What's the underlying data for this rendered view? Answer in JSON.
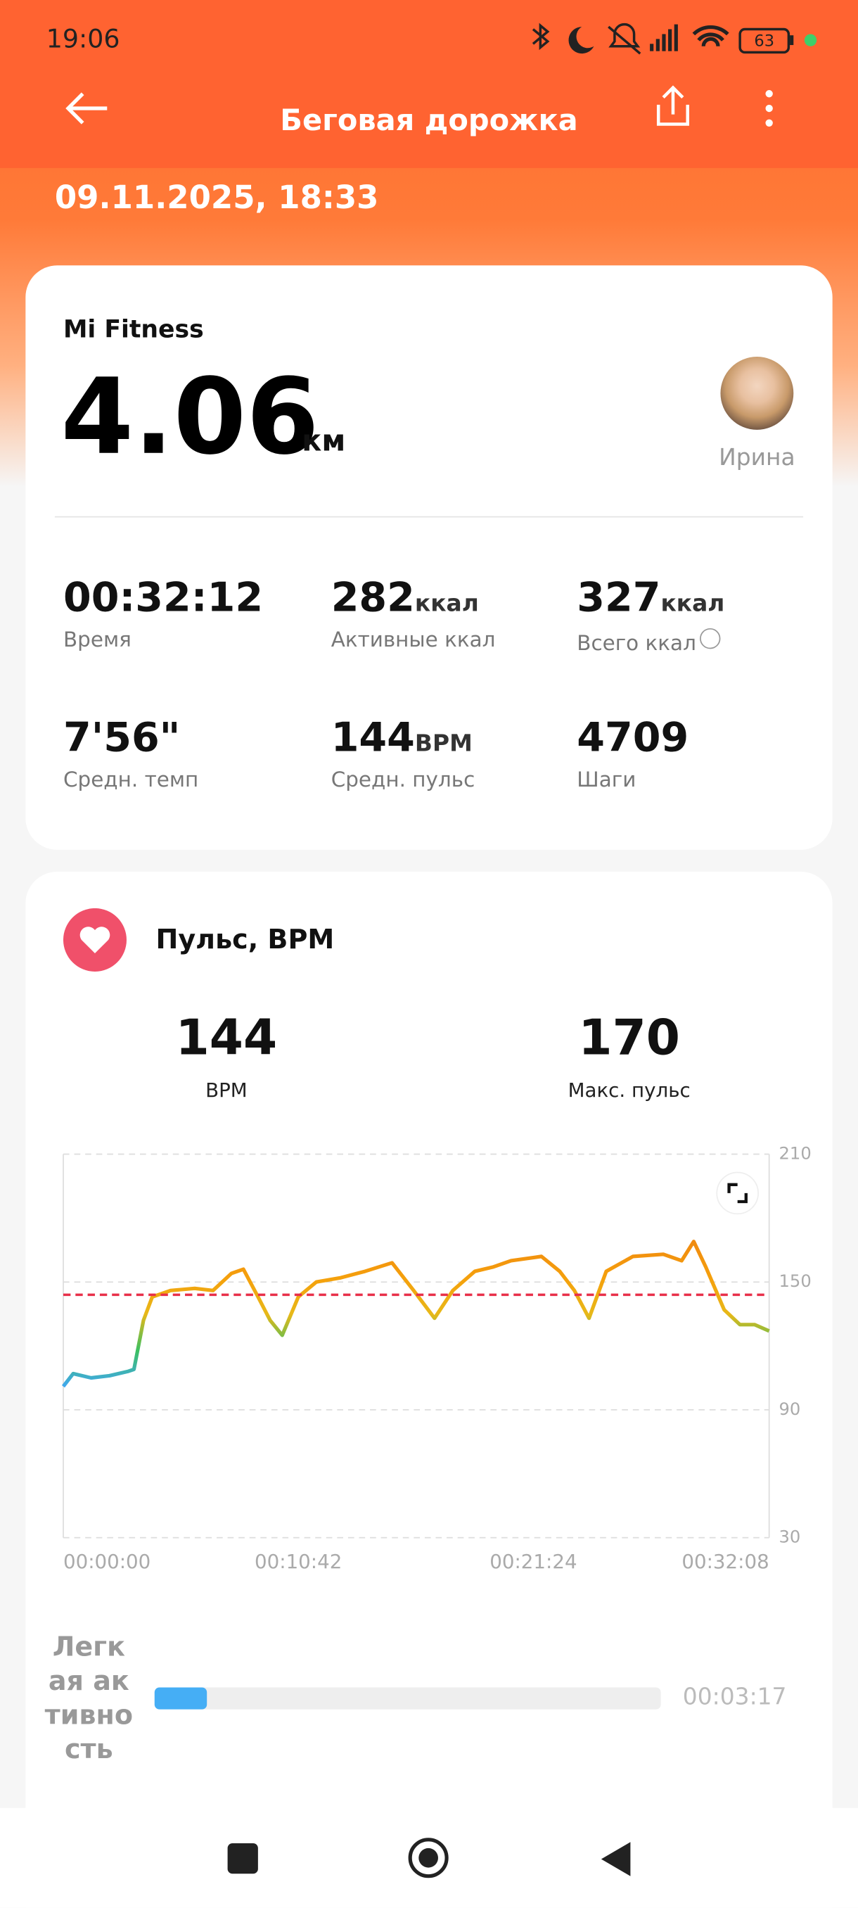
{
  "status_bar": {
    "time": "19:06",
    "battery": "63"
  },
  "header": {
    "title": "Беговая дорожка",
    "date": "09.11.2025, 18:33"
  },
  "summary": {
    "source": "Mi Fitness",
    "distance": "4.06",
    "distance_unit": "км",
    "user": "Ирина",
    "stats": [
      {
        "value": "00:32:12",
        "label": "Время"
      },
      {
        "value": "282",
        "unit": "ккал",
        "label": "Активные ккал"
      },
      {
        "value": "327",
        "unit": "ккал",
        "label": "Всего ккал"
      },
      {
        "value": "7'56\"",
        "label": "Средн. темп"
      },
      {
        "value": "144",
        "unit": "BPM",
        "label": "Средн. пульс"
      },
      {
        "value": "4709",
        "label": "Шаги"
      }
    ]
  },
  "heart": {
    "title": "Пульс, BPM",
    "avg": {
      "value": 144,
      "label": "BPM"
    },
    "max": {
      "value": 170,
      "label": "Макс. пульс"
    }
  },
  "chart_data": {
    "type": "line",
    "x": [
      0,
      27,
      76,
      126,
      176,
      193,
      219,
      243,
      293,
      359,
      409,
      459,
      492,
      532,
      565,
      598,
      642,
      691,
      758,
      824,
      898,
      957,
      1014,
      1064,
      1124,
      1173,
      1223,
      1306,
      1356,
      1396,
      1436,
      1483,
      1556,
      1639,
      1689,
      1722,
      1755,
      1805,
      1848,
      1888,
      1928
    ],
    "values": [
      101,
      107,
      105,
      106,
      108,
      109,
      132,
      143,
      146,
      147,
      146,
      154,
      156,
      143,
      132,
      125,
      143,
      150,
      152,
      155,
      159,
      146,
      133,
      146,
      155,
      157,
      160,
      162,
      155,
      146,
      133,
      155,
      162,
      163,
      160,
      169,
      157,
      137,
      130,
      130,
      127
    ],
    "colors": [
      "#f08a10",
      "#f5a00c",
      "#e8b818",
      "#3cc060",
      "#40a8f0"
    ],
    "avg_color": "#e8304a",
    "xlim": [
      0,
      1928
    ],
    "xticks": [
      {
        "value": 0,
        "label": "00:00:00"
      },
      {
        "value": 642,
        "label": "00:10:42"
      },
      {
        "value": 1284,
        "label": "00:21:24"
      },
      {
        "value": 1928,
        "label": "00:32:08"
      }
    ],
    "ylim": [
      30,
      210
    ],
    "yticks": [
      30,
      90,
      150,
      210
    ],
    "grid": true
  },
  "zones": [
    {
      "label": "Легкая активность",
      "value": "00:03:17",
      "color": "#45aef5"
    }
  ]
}
